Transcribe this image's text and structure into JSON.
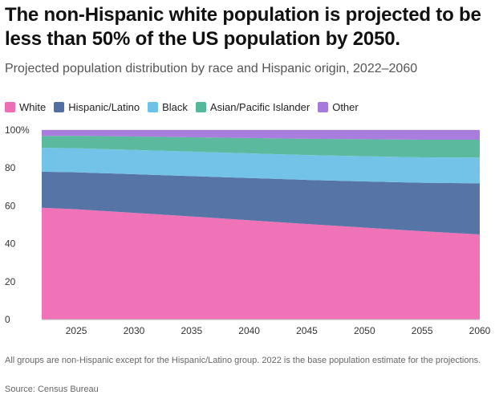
{
  "header": {
    "title": "The non-Hispanic white population is projected to be less than 50% of the US population by 2050.",
    "subtitle": "Projected population distribution by race and Hispanic origin, 2022–2060"
  },
  "footer": {
    "note": "All groups are non-Hispanic except for the Hispanic/Latino group. 2022 is the base population estimate for the projections.",
    "source": "Source: Census Bureau"
  },
  "colors": {
    "White": "#ee6eb4",
    "Hispanic/Latino": "#516fa3",
    "Black": "#6ec1e8",
    "Asian/Pacific Islander": "#56b89a",
    "Other": "#a679dc"
  },
  "chart_data": {
    "type": "area",
    "stacked": true,
    "x": [
      2022,
      2025,
      2030,
      2035,
      2040,
      2045,
      2050,
      2055,
      2060
    ],
    "series": [
      {
        "name": "White",
        "values": [
          59,
          58.2,
          56.3,
          54.4,
          52.4,
          50.4,
          48.5,
          46.6,
          44.9
        ]
      },
      {
        "name": "Hispanic/Latino",
        "values": [
          19,
          19.5,
          20.4,
          21.3,
          22.3,
          23.3,
          24.4,
          25.6,
          27.0
        ]
      },
      {
        "name": "Black",
        "values": [
          12.6,
          12.7,
          12.8,
          12.9,
          13.0,
          13.1,
          13.3,
          13.4,
          13.6
        ]
      },
      {
        "name": "Asian/Pacific Islander",
        "values": [
          6.3,
          6.6,
          7.1,
          7.6,
          8.1,
          8.6,
          9.0,
          9.3,
          9.4
        ]
      },
      {
        "name": "Other",
        "values": [
          3.1,
          3.0,
          3.4,
          3.8,
          4.2,
          4.6,
          4.8,
          5.1,
          5.1
        ]
      }
    ],
    "xticks": [
      2025,
      2030,
      2035,
      2040,
      2045,
      2050,
      2055,
      2060
    ],
    "xlim": [
      2022,
      2060
    ],
    "ylim": [
      0,
      100
    ],
    "yticks": [
      0,
      20,
      40,
      60,
      80,
      100
    ],
    "ytick_labels": [
      "0",
      "20",
      "40",
      "60",
      "80",
      "100%"
    ],
    "grid": true,
    "legend_position": "top-left"
  }
}
